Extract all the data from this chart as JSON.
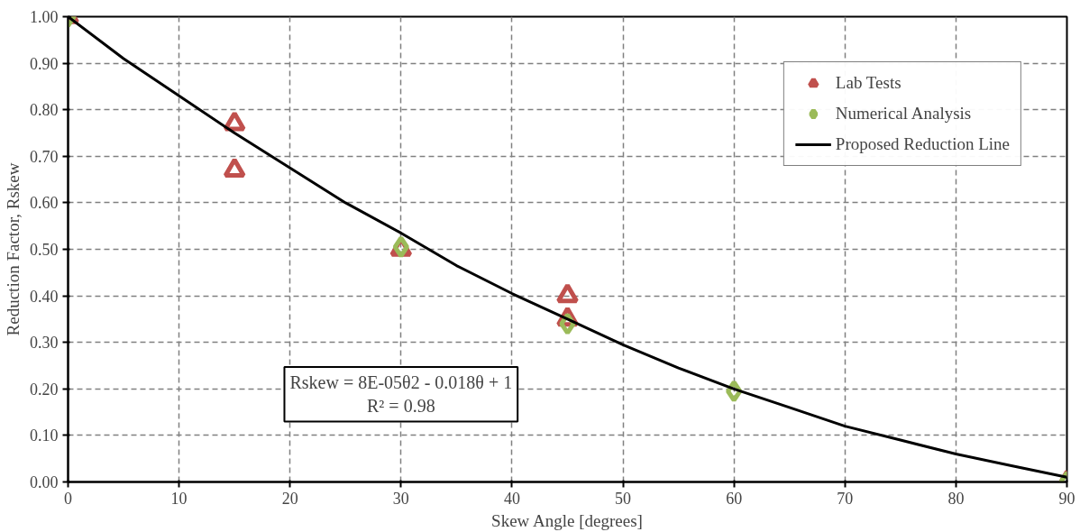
{
  "chart_data": {
    "type": "scatter",
    "xlabel": "Skew Angle [degrees]",
    "ylabel": "Reduction Factor, Rskew",
    "xlim": [
      0,
      90
    ],
    "xticks": [
      0,
      10,
      20,
      30,
      40,
      50,
      60,
      70,
      80,
      90
    ],
    "ylim": [
      0,
      1
    ],
    "yticks": [
      {
        "value": 0,
        "label": "0.00"
      },
      {
        "value": 0.1,
        "label": "0.10"
      },
      {
        "value": 0.2,
        "label": "0.20"
      },
      {
        "value": 0.3,
        "label": "0.30"
      },
      {
        "value": 0.4,
        "label": "0.40"
      },
      {
        "value": 0.5,
        "label": "0.50"
      },
      {
        "value": 0.6,
        "label": "0.60"
      },
      {
        "value": 0.7,
        "label": "0.70"
      },
      {
        "value": 0.8,
        "label": "0.80"
      },
      {
        "value": 0.9,
        "label": "0.90"
      },
      {
        "value": 1,
        "label": "1.00"
      }
    ],
    "grid": true,
    "legend": "top right",
    "annotations": [
      "Rskew = 8E-05θ2 - 0.018θ + 1\nR² = 0.98"
    ],
    "series": [
      {
        "name": "Lab Tests",
        "color": "#c0504d",
        "marker": "triangle",
        "x": [
          0,
          15,
          15,
          30,
          45,
          45,
          90
        ],
        "values": [
          1.0,
          0.77,
          0.67,
          0.5,
          0.4,
          0.35,
          0.0
        ]
      },
      {
        "name": "Numerical Analysis",
        "color": "#9bbb59",
        "marker": "diamond",
        "x": [
          0,
          30,
          45,
          60,
          90
        ],
        "values": [
          1.0,
          0.505,
          0.34,
          0.195,
          0.0
        ]
      },
      {
        "name": "Proposed Reduction Line",
        "type": "line",
        "color": "#000000",
        "marker": "none",
        "line_style": "solid",
        "x": [
          0,
          5,
          10,
          15,
          20,
          25,
          30,
          35,
          40,
          45,
          50,
          55,
          60,
          65,
          70,
          75,
          80,
          85,
          90
        ],
        "values": [
          1.0,
          0.91,
          0.83,
          0.75,
          0.675,
          0.6,
          0.535,
          0.465,
          0.405,
          0.35,
          0.295,
          0.245,
          0.2,
          0.16,
          0.12,
          0.09,
          0.06,
          0.035,
          0.01
        ]
      }
    ]
  }
}
